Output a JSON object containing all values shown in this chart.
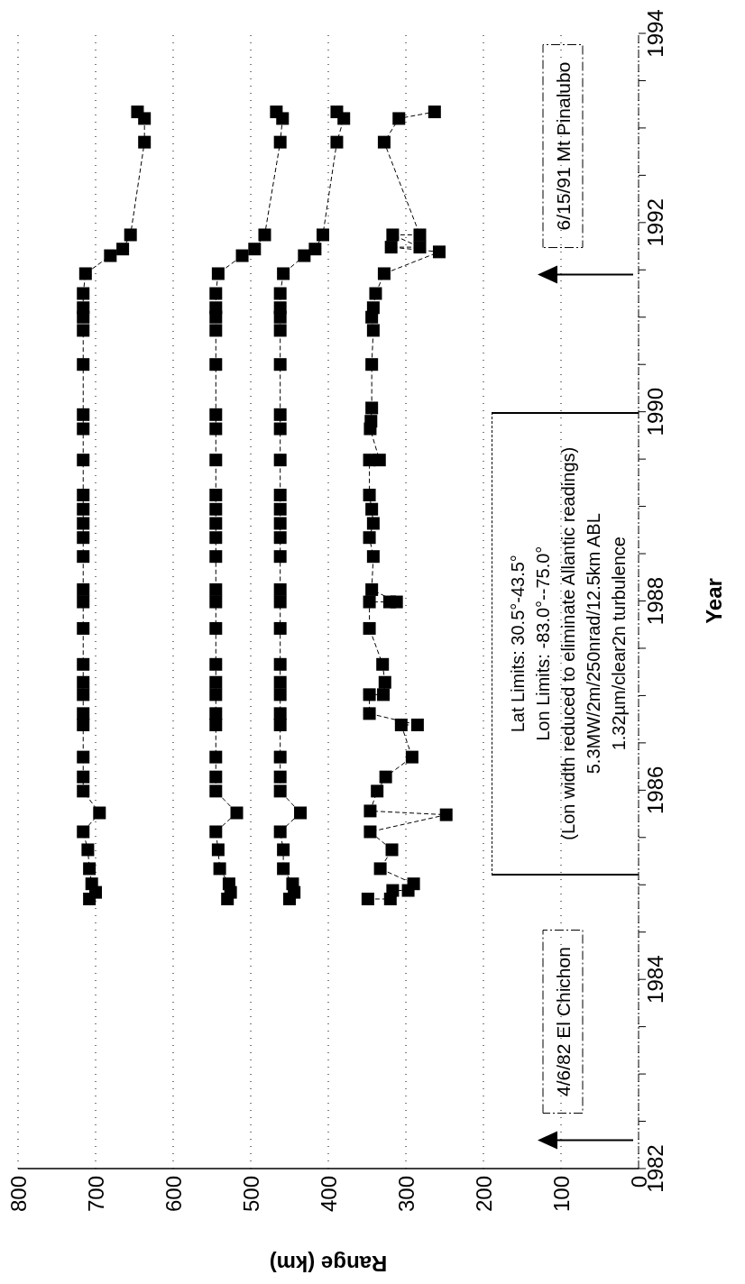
{
  "chart_data": {
    "type": "line",
    "xlabel": "Range (km)",
    "ylabel": "Year",
    "xlim": [
      800,
      0
    ],
    "ylim": [
      1982,
      1994
    ],
    "yticks": [
      1982,
      {
        "value": 1982.5,
        "label": null
      },
      {
        "value": 1983,
        "label": null
      },
      {
        "value": 1983.5,
        "label": null
      },
      1984,
      {
        "value": 1984.5,
        "label": null
      },
      {
        "value": 1985,
        "label": null
      },
      {
        "value": 1985.5,
        "label": null
      },
      1986,
      {
        "value": 1986.5,
        "label": null
      },
      {
        "value": 1987,
        "label": null
      },
      {
        "value": 1987.5,
        "label": null
      },
      1988,
      {
        "value": 1988.5,
        "label": null
      },
      {
        "value": 1989,
        "label": null
      },
      {
        "value": 1989.5,
        "label": null
      },
      1990,
      {
        "value": 1990.5,
        "label": null
      },
      {
        "value": 1991,
        "label": null
      },
      {
        "value": 1991.5,
        "label": null
      },
      1992,
      {
        "value": 1992.5,
        "label": null
      },
      {
        "value": 1993,
        "label": null
      },
      {
        "value": 1993.5,
        "label": null
      },
      1994
    ],
    "xticks": [
      800,
      700,
      600,
      500,
      400,
      300,
      200,
      100,
      0
    ],
    "grid": "x",
    "marker": "square",
    "line_style": "dashed",
    "series": [
      {
        "color": "#000000",
        "values": [
          1984.85,
          1984.92,
          1985.01,
          1985.17,
          1985.37,
          1985.56,
          1985.76,
          1985.99,
          1986.14,
          1986.35,
          1986.69,
          1986.81,
          1987.01,
          1987.14,
          1987.33,
          1987.71,
          1987.99,
          1988.12,
          1988.47,
          1988.67,
          1988.82,
          1988.97,
          1989.12,
          1989.49,
          1989.82,
          1989.97,
          1990.5,
          1990.86,
          1991.0,
          1991.1,
          1991.25,
          1991.46,
          1991.65,
          1991.72,
          1991.87,
          1992.85,
          1993.1,
          1993.17
        ],
        "x": [
          708,
          700,
          705,
          708,
          710,
          716,
          695,
          716,
          716,
          716,
          716,
          716,
          716,
          716,
          716,
          716,
          716,
          716,
          716,
          716,
          716,
          716,
          716,
          716,
          716,
          716,
          716,
          716,
          716,
          716,
          716,
          713,
          681,
          665,
          655,
          637,
          637,
          646
        ]
      },
      {
        "color": "#000000",
        "values": [
          1984.85,
          1984.92,
          1985.01,
          1985.17,
          1985.37,
          1985.56,
          1985.76,
          1985.99,
          1986.14,
          1986.35,
          1986.69,
          1986.81,
          1987.01,
          1987.14,
          1987.33,
          1987.71,
          1987.99,
          1988.12,
          1988.47,
          1988.67,
          1988.82,
          1988.97,
          1989.12,
          1989.49,
          1989.82,
          1989.97,
          1990.5,
          1990.86,
          1991.0,
          1991.1,
          1991.25,
          1991.46,
          1991.65,
          1991.72,
          1991.87,
          1992.85,
          1993.1,
          1993.17
        ],
        "x": [
          530,
          526,
          528,
          540,
          542,
          545,
          518,
          545,
          545,
          545,
          545,
          545,
          545,
          545,
          545,
          545,
          545,
          545,
          545,
          545,
          545,
          545,
          545,
          545,
          545,
          545,
          545,
          545,
          545,
          545,
          545,
          542,
          511,
          495,
          482,
          462,
          459,
          467
        ]
      },
      {
        "color": "#000000",
        "values": [
          1984.85,
          1984.92,
          1985.01,
          1985.17,
          1985.37,
          1985.56,
          1985.76,
          1985.99,
          1986.14,
          1986.35,
          1986.69,
          1986.81,
          1987.01,
          1987.14,
          1987.33,
          1987.71,
          1987.99,
          1988.12,
          1988.47,
          1988.67,
          1988.82,
          1988.97,
          1989.12,
          1989.49,
          1989.82,
          1989.97,
          1990.5,
          1990.86,
          1991.0,
          1991.1,
          1991.25,
          1991.46,
          1991.65,
          1991.72,
          1991.87,
          1992.85,
          1993.1,
          1993.17
        ],
        "x": [
          450,
          444,
          446,
          458,
          458,
          462,
          436,
          462,
          462,
          462,
          462,
          462,
          462,
          462,
          462,
          462,
          462,
          462,
          462,
          462,
          462,
          462,
          462,
          462,
          462,
          462,
          462,
          462,
          462,
          462,
          462,
          458,
          431,
          417,
          407,
          389,
          380,
          389
        ]
      },
      {
        "color": "#000000",
        "values": [
          1984.85,
          1984.85,
          1984.94,
          1984.94,
          1985.01,
          1985.17,
          1985.37,
          1985.56,
          1985.74,
          1985.78,
          1985.99,
          1986.14,
          1986.35,
          1986.69,
          1986.69,
          1986.81,
          1987.01,
          1987.01,
          1987.14,
          1987.33,
          1987.71,
          1987.99,
          1987.99,
          1987.99,
          1988.12,
          1988.47,
          1988.67,
          1988.82,
          1988.97,
          1989.12,
          1989.49,
          1989.49,
          1989.82,
          1989.9,
          1990.04,
          1990.5,
          1990.86,
          1991.0,
          1991.1,
          1991.25,
          1991.46,
          1991.69,
          1991.74,
          1991.74,
          1991.87,
          1991.87,
          1992.85,
          1993.1,
          1993.17
        ],
        "x": [
          349,
          320,
          317,
          297,
          290,
          333,
          318,
          346,
          248,
          346,
          337,
          326,
          292,
          306,
          285,
          347,
          347,
          329,
          327,
          330,
          347,
          347,
          321,
          312,
          344,
          342,
          347,
          342,
          344,
          347,
          347,
          334,
          346,
          345,
          344,
          344,
          342,
          344,
          342,
          339,
          328,
          257,
          319,
          282,
          317,
          282,
          328,
          309,
          263
        ]
      }
    ],
    "ref_lines": [
      {
        "axis": "y",
        "value": 1982.3,
        "label": "4/6/82 El Chichon"
      },
      {
        "axis": "y",
        "value": 1991.45,
        "label": "6/15/91 Mt Pinalubo"
      }
    ],
    "annotations": [
      "Lat Limits: 30.5°-43.5°",
      "Lon Limits: -83.0°--75.0°",
      "(Lon width reduced to eliminate Allantic readings)",
      "5.3MW/2m/250nrad/12.5km ABL",
      "1.32µm/clear2n turbulence"
    ]
  }
}
